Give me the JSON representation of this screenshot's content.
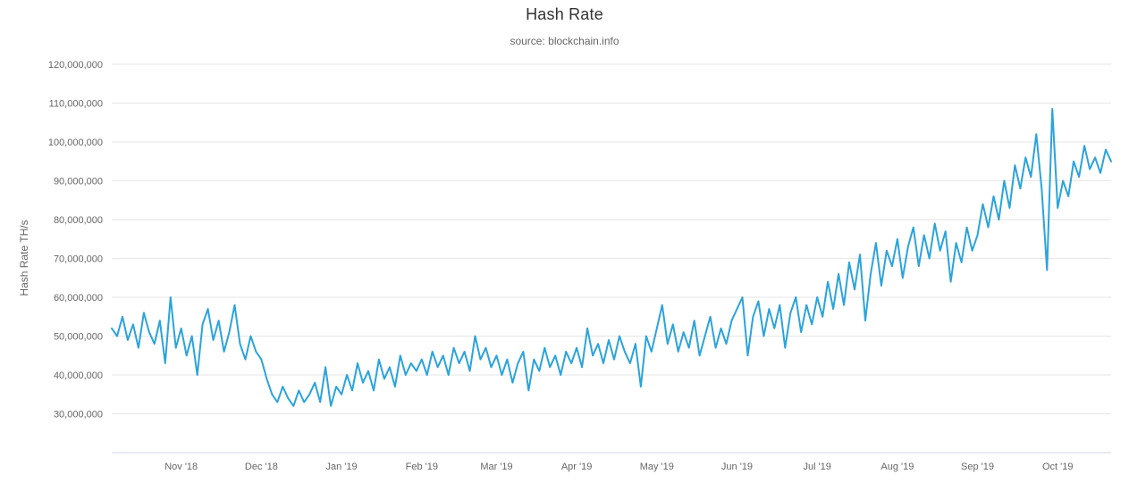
{
  "header": {
    "title": "Hash Rate",
    "subtitle": "source: blockchain.info"
  },
  "chart_data": {
    "type": "line",
    "title": "Hash Rate",
    "subtitle": "source: blockchain.info",
    "xlabel": "",
    "ylabel": "Hash Rate TH/s",
    "series_name": "Hash Rate",
    "unit": "million TH/s",
    "line_color": "#2ba3dc",
    "grid_color": "#e6e6e6",
    "axis_line_color": "#ccd6eb",
    "label_color": "#666666",
    "grid": true,
    "legend": false,
    "ylim": [
      20000000,
      120000000
    ],
    "ytick_step": 10000000,
    "ytick_values": [
      30,
      40,
      50,
      60,
      70,
      80,
      90,
      100,
      110,
      120
    ],
    "ytick_labels": [
      "30,000,000",
      "40,000,000",
      "50,000,000",
      "60,000,000",
      "70,000,000",
      "80,000,000",
      "90,000,000",
      "100,000,000",
      "110,000,000",
      "120,000,000"
    ],
    "xtick_labels": [
      "Nov '18",
      "Dec '18",
      "Jan '19",
      "Feb '19",
      "Mar '19",
      "Apr '19",
      "May '19",
      "Jun '19",
      "Jul '19",
      "Aug '19",
      "Sep '19",
      "Oct '19"
    ],
    "xtick_indices": [
      13,
      28,
      43,
      58,
      72,
      87,
      102,
      117,
      132,
      147,
      162,
      177
    ],
    "x_range_note": "daily hash rate, approx Oct 2018 - Oct 2019, sampled every ~2 days",
    "values_millions": [
      52,
      50,
      55,
      49,
      53,
      47,
      56,
      51,
      48,
      54,
      43,
      60,
      47,
      52,
      45,
      50,
      40,
      53,
      57,
      49,
      54,
      46,
      51,
      58,
      48,
      44,
      50,
      46,
      44,
      39,
      35,
      33,
      37,
      34,
      32,
      36,
      33,
      35,
      38,
      33,
      42,
      32,
      37,
      35,
      40,
      36,
      43,
      38,
      41,
      36,
      44,
      39,
      42,
      37,
      45,
      40,
      43,
      41,
      44,
      40,
      46,
      42,
      45,
      40,
      47,
      43,
      46,
      41,
      50,
      44,
      47,
      42,
      45,
      40,
      44,
      38,
      43,
      46,
      36,
      44,
      41,
      47,
      42,
      45,
      40,
      46,
      43,
      47,
      42,
      52,
      45,
      48,
      43,
      49,
      44,
      50,
      46,
      43,
      48,
      37,
      50,
      46,
      52,
      58,
      48,
      53,
      46,
      51,
      47,
      54,
      45,
      50,
      55,
      47,
      52,
      48,
      54,
      57,
      60,
      45,
      55,
      59,
      50,
      57,
      52,
      58,
      47,
      56,
      60,
      51,
      58,
      53,
      60,
      55,
      64,
      57,
      66,
      58,
      69,
      62,
      71,
      54,
      66,
      74,
      63,
      72,
      68,
      75,
      65,
      73,
      78,
      68,
      76,
      70,
      79,
      72,
      77,
      64,
      74,
      69,
      78,
      72,
      76,
      84,
      78,
      86,
      80,
      90,
      83,
      94,
      88,
      96,
      91,
      102,
      88,
      67,
      108.5,
      83,
      90,
      86,
      95,
      91,
      99,
      93,
      96,
      92,
      98,
      95
    ]
  }
}
